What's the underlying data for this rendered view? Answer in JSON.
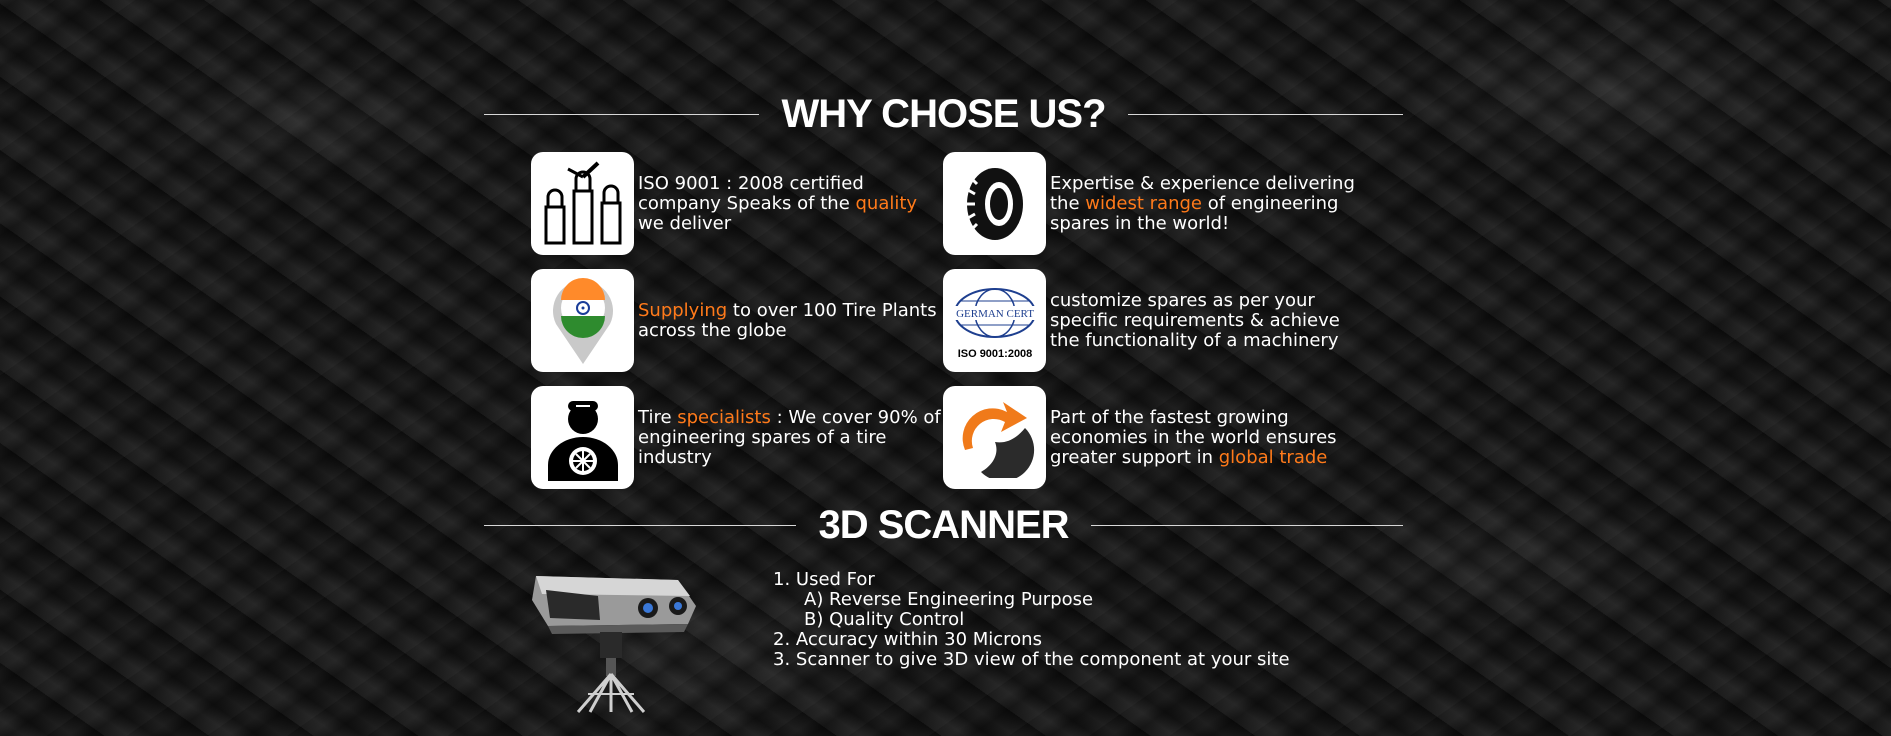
{
  "why_section": {
    "title": "WHY CHOSE US?",
    "features": [
      {
        "icon": "raised-fists-icon",
        "text_before": "ISO 9001 : 2008 certified\ncompany Speaks of the ",
        "highlight": "quality",
        "text_after": "\nwe deliver"
      },
      {
        "icon": "tire-icon",
        "text_before": "Expertise & experience delivering\nthe ",
        "highlight": "widest range",
        "text_after": " of engineering\nspares in the world!"
      },
      {
        "icon": "india-map-pin-icon",
        "text_before": "",
        "highlight": "Supplying",
        "text_after": " to over 100 Tire Plants\nacross the globe"
      },
      {
        "icon": "german-cert-iso-icon",
        "text_before": "customize spares as per your\nspecific requirements & achieve\nthe functionality of a machinery",
        "highlight": "",
        "text_after": ""
      },
      {
        "icon": "mechanic-icon",
        "text_before": "Tire ",
        "highlight": "specialists",
        "text_after": " : We cover 90% of\nengineering spares of a tire\nindustry"
      },
      {
        "icon": "growth-arrow-icon",
        "text_before": "Part of the fastest growing\neconomies in the world ensures\ngreater support in ",
        "highlight": "global trade",
        "text_after": ""
      }
    ],
    "icon_labels": {
      "german_cert": "GERMAN CERT",
      "iso": "ISO 9001:2008"
    }
  },
  "scanner_section": {
    "title": "3D SCANNER",
    "image_icon": "3d-scanner-icon",
    "list": [
      {
        "text": "1. Used For",
        "sub": false
      },
      {
        "text": "A) Reverse Engineering Purpose",
        "sub": true
      },
      {
        "text": "B) Quality Control",
        "sub": true
      },
      {
        "text": "2. Accuracy within 30 Microns",
        "sub": false
      },
      {
        "text": "3. Scanner to give 3D view of the component at your site",
        "sub": false
      }
    ]
  },
  "colors": {
    "highlight": "#ff7a1a",
    "heading": "#ffffff",
    "background": "#111111"
  }
}
